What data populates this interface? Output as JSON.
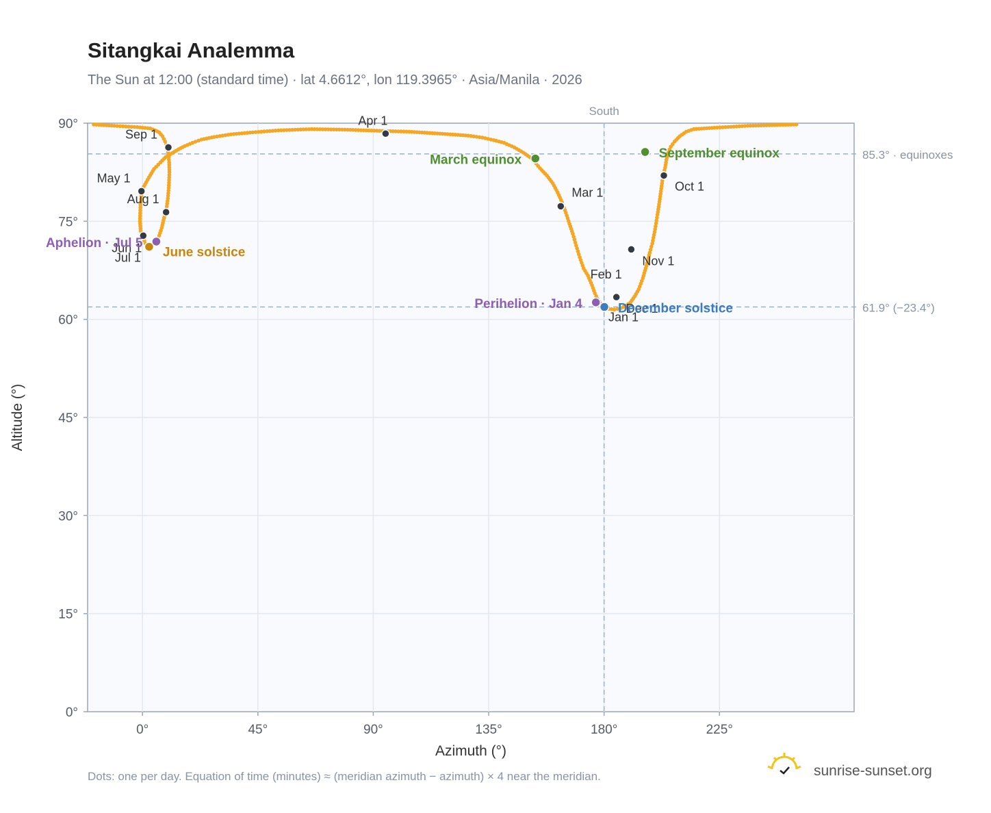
{
  "title": "Sitangkai Analemma",
  "subtitle": "The Sun at 12:00 (standard time) · lat 4.6612°, lon 119.3965° · Asia/Manila · 2026",
  "footnote": "Dots: one per day. Equation of time (minutes) ≈ (meridian azimuth − azimuth) × 4 near the meridian.",
  "brand": {
    "text": "sunrise-sunset.org",
    "logo_icon": "sun-check-logo"
  },
  "colors": {
    "curve": "#f5a623",
    "month_dot": "#333a45",
    "equinox": "#4f8f2f",
    "june_solstice": "#c8860b",
    "december_solstice": "#3b7bbf",
    "apsis": "#8c5fb0",
    "plot_bg": "#f8fafd",
    "grid": "#e3e8ef",
    "axis": "#9aa5b4"
  },
  "chart_data": {
    "type": "scatter",
    "xlabel": "Azimuth (°)",
    "ylabel": "Altitude (°)",
    "xlim": [
      -21.4,
      277.5
    ],
    "ylim": [
      0,
      90
    ],
    "xticks": [
      0,
      45,
      90,
      135,
      180,
      225
    ],
    "yticks": [
      0,
      15,
      30,
      45,
      60,
      75,
      90
    ],
    "x_tick_labels": [
      "0°",
      "45°",
      "90°",
      "135°",
      "180°",
      "225°"
    ],
    "y_tick_labels": [
      "0°",
      "15°",
      "30°",
      "45°",
      "60°",
      "75°",
      "90°"
    ],
    "grid": true,
    "reference_lines": [
      {
        "axis": "x",
        "value": 180,
        "label": "South"
      },
      {
        "axis": "y",
        "value": 85.3,
        "label": "85.3° · equinoxes"
      },
      {
        "axis": "y",
        "value": 61.9,
        "label": "61.9° (−23.4°)"
      }
    ],
    "daily_path": {
      "name": "Daily sun position",
      "points": [
        [
          179.9,
          61.9
        ],
        [
          178.7,
          62.4
        ],
        [
          177.5,
          63.1
        ],
        [
          176.4,
          64.0
        ],
        [
          175.3,
          65.2
        ],
        [
          173.7,
          66.7
        ],
        [
          172.0,
          67.8
        ],
        [
          170.5,
          69.5
        ],
        [
          169.1,
          71.3
        ],
        [
          167.8,
          73.1
        ],
        [
          166.5,
          74.6
        ],
        [
          165.1,
          76.3
        ],
        [
          163.6,
          77.9
        ],
        [
          161.9,
          79.4
        ],
        [
          160.0,
          80.8
        ],
        [
          157.7,
          82.0
        ],
        [
          155.0,
          83.1
        ],
        [
          152.7,
          84.2
        ],
        [
          151.8,
          84.6
        ],
        [
          148.5,
          85.5
        ],
        [
          145.0,
          86.3
        ],
        [
          141.0,
          87.0
        ],
        [
          137.0,
          87.4
        ],
        [
          132.5,
          87.8
        ],
        [
          127.0,
          88.1
        ],
        [
          120.0,
          88.3
        ],
        [
          112.0,
          88.5
        ],
        [
          104.0,
          88.7
        ],
        [
          94.5,
          88.8
        ],
        [
          80.0,
          89.0
        ],
        [
          66.0,
          89.1
        ],
        [
          53.0,
          88.9
        ],
        [
          43.0,
          88.6
        ],
        [
          34.5,
          88.3
        ],
        [
          28.0,
          87.9
        ],
        [
          23.0,
          87.5
        ],
        [
          19.5,
          87.0
        ],
        [
          16.5,
          86.5
        ],
        [
          14.0,
          86.0
        ],
        [
          11.5,
          85.4
        ],
        [
          9.0,
          84.8
        ],
        [
          7.0,
          84.0
        ],
        [
          4.5,
          83.0
        ],
        [
          2.5,
          81.7
        ],
        [
          0.5,
          80.3
        ],
        [
          -0.3,
          79.3
        ],
        [
          -0.8,
          77.5
        ],
        [
          -1.0,
          75.0
        ],
        [
          -0.7,
          73.5
        ],
        [
          0.2,
          72.5
        ],
        [
          1.2,
          71.6
        ],
        [
          2.2,
          71.2
        ],
        [
          2.6,
          71.1
        ],
        [
          4.0,
          71.4
        ],
        [
          5.4,
          71.9
        ],
        [
          6.5,
          72.8
        ],
        [
          7.5,
          74.0
        ],
        [
          8.4,
          75.5
        ],
        [
          9.2,
          76.5
        ],
        [
          9.9,
          78.5
        ],
        [
          10.3,
          80.5
        ],
        [
          10.5,
          82.5
        ],
        [
          10.4,
          84.0
        ],
        [
          10.1,
          85.2
        ],
        [
          9.7,
          86.3
        ],
        [
          8.8,
          87.2
        ],
        [
          7.8,
          88.0
        ],
        [
          6.5,
          88.6
        ],
        [
          5.0,
          88.9
        ],
        [
          3.0,
          89.2
        ],
        [
          -2.0,
          89.4
        ],
        [
          -11.0,
          89.6
        ],
        [
          -19.0,
          89.8
        ]
      ],
      "second_branch": [
        [
          255.0,
          89.8
        ],
        [
          236.0,
          89.6
        ],
        [
          223.0,
          89.3
        ],
        [
          215.0,
          89.1
        ],
        [
          212.0,
          88.7
        ],
        [
          209.5,
          88.0
        ],
        [
          207.5,
          87.2
        ],
        [
          206.0,
          86.4
        ],
        [
          205.0,
          85.5
        ],
        [
          204.3,
          84.4
        ],
        [
          203.8,
          83.2
        ],
        [
          203.0,
          82.0
        ],
        [
          202.3,
          80.0
        ],
        [
          201.6,
          78.0
        ],
        [
          200.8,
          76.0
        ],
        [
          199.9,
          73.8
        ],
        [
          198.8,
          71.6
        ],
        [
          197.8,
          70.2
        ],
        [
          196.5,
          68.2
        ],
        [
          195.1,
          66.3
        ],
        [
          193.5,
          64.6
        ],
        [
          191.9,
          63.5
        ],
        [
          190.3,
          62.6
        ],
        [
          188.6,
          62.1
        ],
        [
          186.5,
          61.7
        ],
        [
          184.0,
          61.5
        ],
        [
          181.8,
          61.6
        ],
        [
          179.9,
          61.9
        ]
      ]
    },
    "month_markers": [
      {
        "label": "Jan 1",
        "az": 180.1,
        "alt": 61.9
      },
      {
        "label": "Feb 1",
        "az": 184.8,
        "alt": 63.4
      },
      {
        "label": "Mar 1",
        "az": 163.1,
        "alt": 77.3
      },
      {
        "label": "Apr 1",
        "az": 94.8,
        "alt": 88.4
      },
      {
        "label": "May 1",
        "az": -0.4,
        "alt": 79.6
      },
      {
        "label": "Jun 1",
        "az": 0.3,
        "alt": 72.8
      },
      {
        "label": "Jul 1",
        "az": 2.6,
        "alt": 71.1
      },
      {
        "label": "Aug 1",
        "az": 9.2,
        "alt": 76.4
      },
      {
        "label": "Sep 1",
        "az": 10.1,
        "alt": 86.3
      },
      {
        "label": "Oct 1",
        "az": 203.3,
        "alt": 82.0
      },
      {
        "label": "Nov 1",
        "az": 190.6,
        "alt": 70.7
      },
      {
        "label": "Dec 1",
        "az": 184.8,
        "alt": 63.4
      }
    ],
    "events": [
      {
        "label": "March equinox",
        "az": 153.2,
        "alt": 84.6,
        "color_key": "equinox"
      },
      {
        "label": "September equinox",
        "az": 196.0,
        "alt": 85.6,
        "color_key": "equinox"
      },
      {
        "label": "June solstice",
        "az": 2.6,
        "alt": 71.1,
        "color_key": "june_solstice"
      },
      {
        "label": "December solstice",
        "az": 180.1,
        "alt": 61.9,
        "color_key": "december_solstice"
      },
      {
        "label": "Aphelion · Jul 5",
        "az": 5.4,
        "alt": 71.9,
        "color_key": "apsis"
      },
      {
        "label": "Perihelion · Jan 4",
        "az": 176.8,
        "alt": 62.6,
        "color_key": "apsis"
      }
    ]
  }
}
